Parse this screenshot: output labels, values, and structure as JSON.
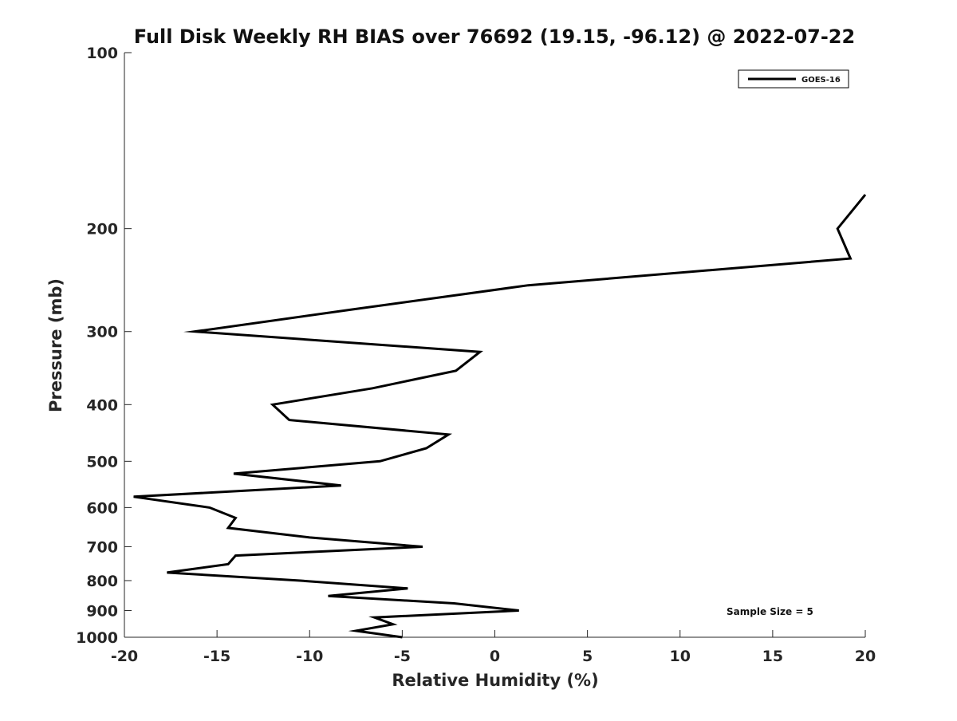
{
  "chart_data": {
    "type": "line",
    "title": "Full Disk Weekly RH BIAS over 76692 (19.15, -96.12) @ 2022-07-22",
    "xlabel": "Relative Humidity (%)",
    "ylabel": "Pressure (mb)",
    "xlim": [
      -20,
      20
    ],
    "ylim": [
      100,
      1000
    ],
    "y_scale": "log",
    "y_reversed": true,
    "xticks": [
      -20,
      -15,
      -10,
      -5,
      0,
      5,
      10,
      15,
      20
    ],
    "yticks": [
      100,
      200,
      300,
      400,
      500,
      600,
      700,
      800,
      900,
      1000
    ],
    "grid": false,
    "legend_position": "top-right",
    "annotation": "Sample Size = 5",
    "series": [
      {
        "name": "GOES-16",
        "color": "#000000",
        "points": [
          {
            "x": -5.0,
            "y": 1000
          },
          {
            "x": -7.5,
            "y": 975
          },
          {
            "x": -5.5,
            "y": 950
          },
          {
            "x": -6.5,
            "y": 925
          },
          {
            "x": 1.3,
            "y": 900
          },
          {
            "x": -2.2,
            "y": 875
          },
          {
            "x": -9.0,
            "y": 850
          },
          {
            "x": -4.7,
            "y": 825
          },
          {
            "x": -10.5,
            "y": 800
          },
          {
            "x": -17.7,
            "y": 775
          },
          {
            "x": -14.4,
            "y": 750
          },
          {
            "x": -14.0,
            "y": 725
          },
          {
            "x": -3.9,
            "y": 700
          },
          {
            "x": -10.0,
            "y": 675
          },
          {
            "x": -14.4,
            "y": 650
          },
          {
            "x": -14.0,
            "y": 625
          },
          {
            "x": -15.4,
            "y": 600
          },
          {
            "x": -19.5,
            "y": 575
          },
          {
            "x": -8.3,
            "y": 550
          },
          {
            "x": -14.1,
            "y": 525
          },
          {
            "x": -6.2,
            "y": 500
          },
          {
            "x": -3.7,
            "y": 475
          },
          {
            "x": -2.5,
            "y": 450
          },
          {
            "x": -11.1,
            "y": 425
          },
          {
            "x": -12.0,
            "y": 400
          },
          {
            "x": -6.6,
            "y": 375
          },
          {
            "x": -2.1,
            "y": 350
          },
          {
            "x": -0.8,
            "y": 325
          },
          {
            "x": -16.2,
            "y": 300
          },
          {
            "x": -7.7,
            "y": 275
          },
          {
            "x": 1.8,
            "y": 250
          },
          {
            "x": 19.2,
            "y": 225
          },
          {
            "x": 18.5,
            "y": 200
          },
          {
            "x": 20.0,
            "y": 175
          }
        ]
      }
    ]
  }
}
